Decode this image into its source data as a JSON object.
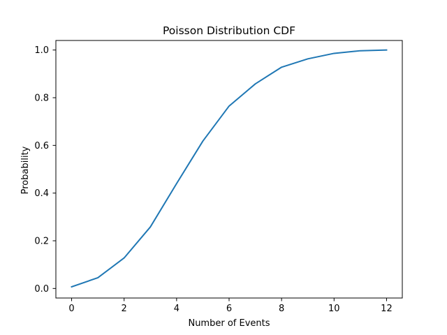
{
  "chart_data": {
    "type": "line",
    "title": "Poisson Distribution CDF",
    "xlabel": "Number of Events",
    "ylabel": "Probability",
    "xlim": [
      -0.6,
      12.6
    ],
    "ylim": [
      -0.04,
      1.04
    ],
    "xticks": [
      0,
      2,
      4,
      6,
      8,
      10,
      12
    ],
    "yticks": [
      0.0,
      0.2,
      0.4,
      0.6,
      0.8,
      1.0
    ],
    "xtick_labels": [
      "0",
      "2",
      "4",
      "6",
      "8",
      "10",
      "12"
    ],
    "ytick_labels": [
      "0.0",
      "0.2",
      "0.4",
      "0.6",
      "0.8",
      "1.0"
    ],
    "grid": false,
    "series": [
      {
        "color": "#1f77b4",
        "x": [
          0,
          1,
          2,
          3,
          4,
          5,
          6,
          7,
          8,
          9,
          10,
          11,
          12
        ],
        "y": [
          0.007,
          0.045,
          0.128,
          0.258,
          0.44,
          0.618,
          0.765,
          0.858,
          0.928,
          0.963,
          0.986,
          0.997,
          1.0
        ]
      }
    ]
  }
}
